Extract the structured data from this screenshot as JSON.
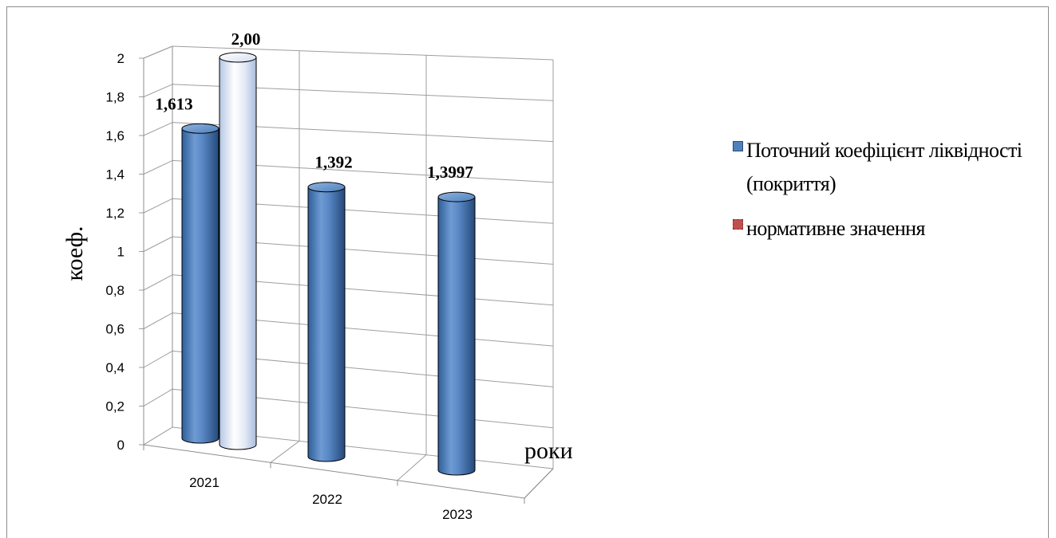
{
  "chart_data": {
    "type": "bar",
    "style": "3d-cylinder",
    "categories": [
      "2021",
      "2022",
      "2023"
    ],
    "series": [
      {
        "name": "Поточний коефіцієнт ліквідності (покриття)",
        "values": [
          1.613,
          1.392,
          1.3997
        ],
        "labels": [
          "1,613",
          "1,392",
          "1,3997"
        ],
        "color": "#4f81bd"
      },
      {
        "name": "нормативне значення",
        "values": [
          2.0,
          null,
          null
        ],
        "labels": [
          "2,00",
          "",
          ""
        ],
        "color": "#c0504d"
      }
    ],
    "yticks": [
      "0",
      "0,2",
      "0,4",
      "0,6",
      "0,8",
      "1",
      "1,2",
      "1,4",
      "1,6",
      "1,8",
      "2"
    ],
    "ylim": [
      0,
      2
    ],
    "ylabel": "коеф.",
    "xlabel": "роки",
    "grid": true,
    "legend": "right"
  },
  "legend": {
    "items": [
      {
        "label": "Поточний коефіцієнт ліквідності (покриття)",
        "color": "#4f81bd"
      },
      {
        "label": "нормативне значення",
        "color": "#c0504d"
      }
    ]
  }
}
